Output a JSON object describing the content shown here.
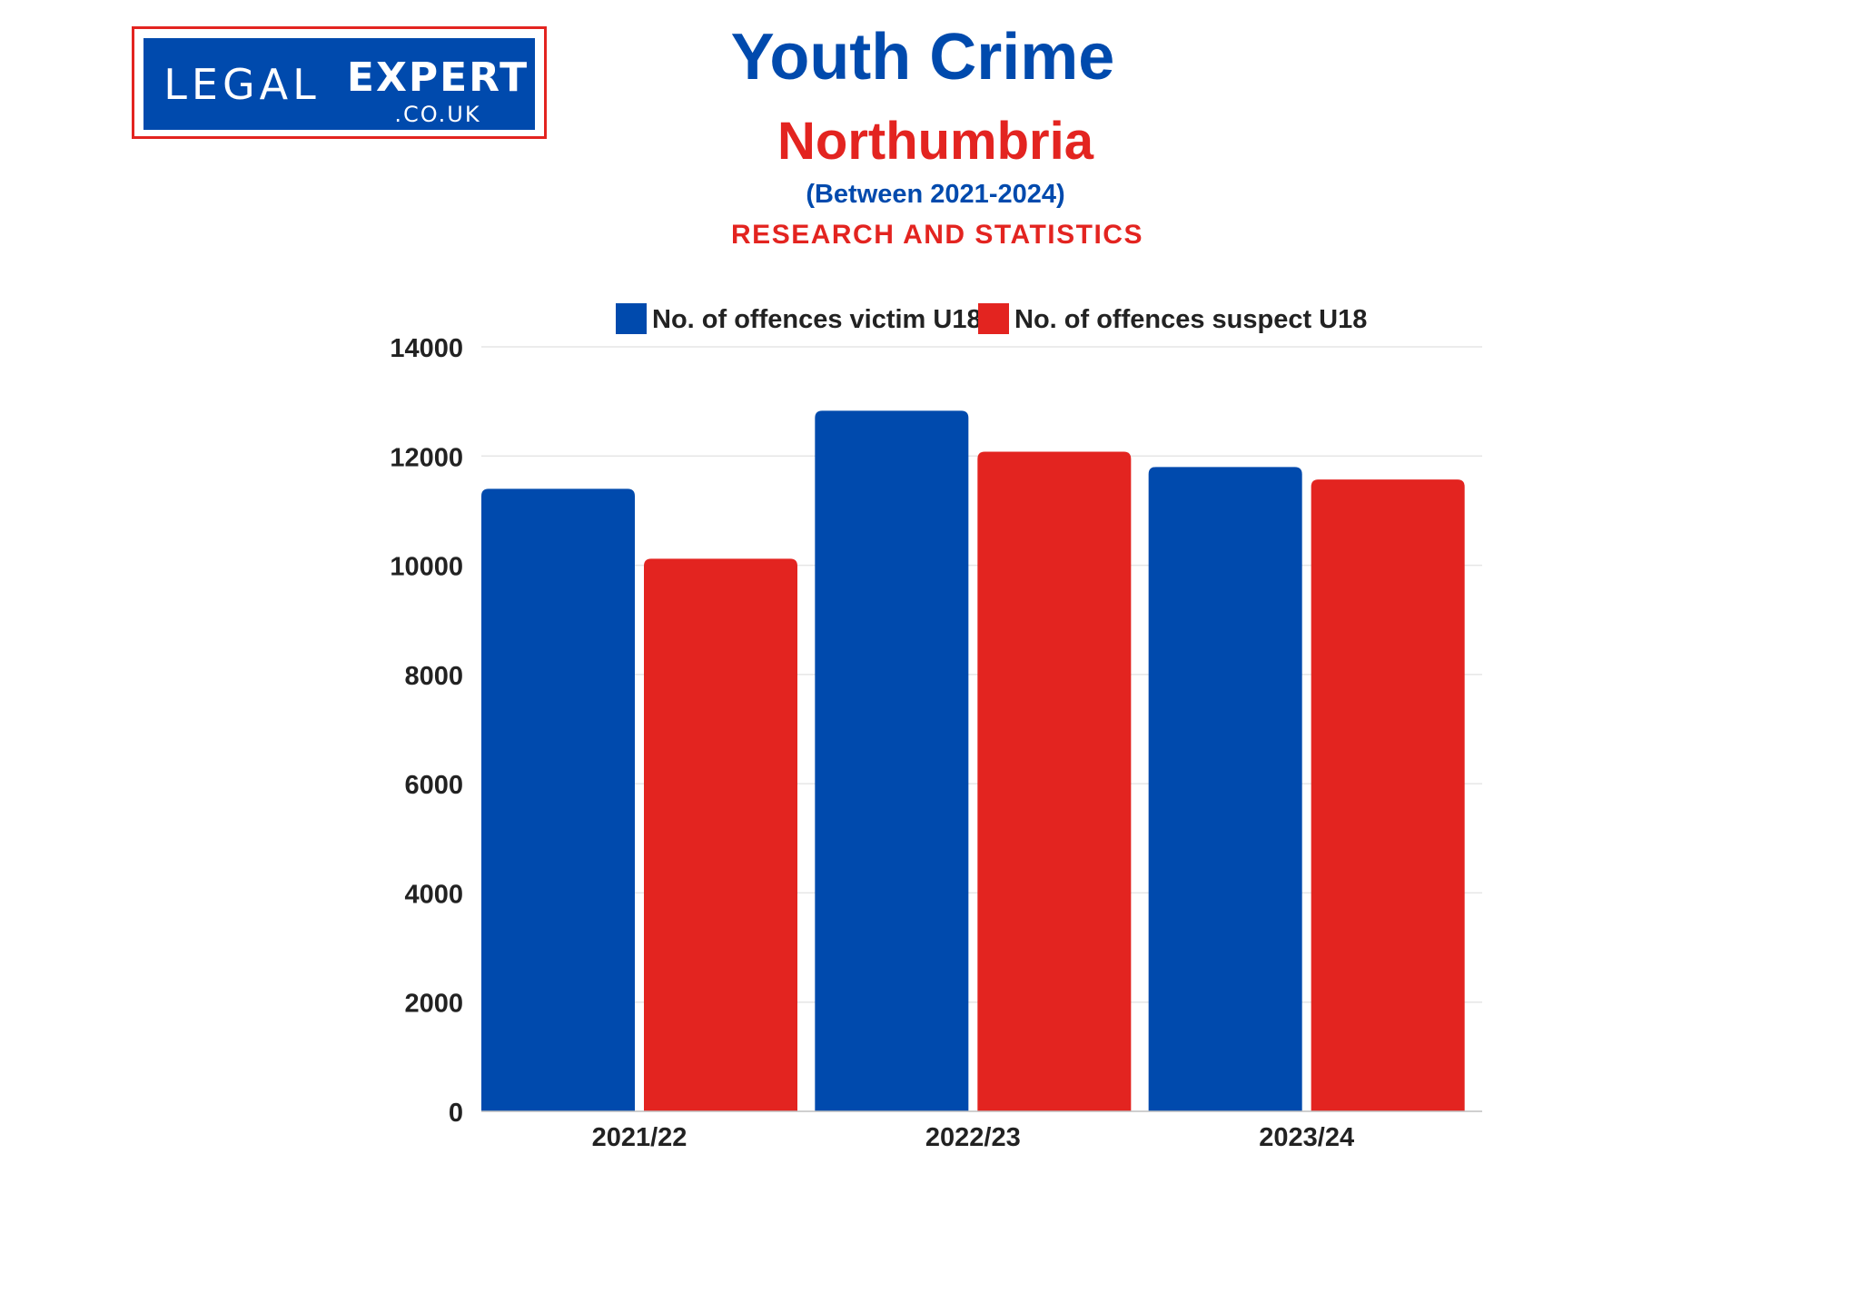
{
  "header": {
    "logo": {
      "main": "LEGAL",
      "accent": "EXPERT",
      "domain": ".CO.UK"
    },
    "title": "Youth Crime",
    "subtitle": "Northumbria",
    "period": "(Between 2021-2024)",
    "tagline": "RESEARCH AND STATISTICS"
  },
  "colors": {
    "blue": "#004aad",
    "red": "#e32420",
    "grid": "#e6e6e6",
    "axis": "#bfbfbf"
  },
  "chart_data": {
    "type": "bar",
    "title": "",
    "xlabel": "",
    "ylabel": "",
    "categories": [
      "2021/22",
      "2022/23",
      "2023/24"
    ],
    "series": [
      {
        "name": "No. of offences victim U18",
        "color": "#004aad",
        "values": [
          11400,
          12830,
          11800
        ]
      },
      {
        "name": "No. of offences suspect U18",
        "color": "#e32420",
        "values": [
          10120,
          12080,
          11570
        ]
      }
    ],
    "ylim": [
      0,
      14000
    ],
    "yticks": [
      0,
      2000,
      4000,
      6000,
      8000,
      10000,
      12000,
      14000
    ],
    "grid": true,
    "legend": "top"
  }
}
